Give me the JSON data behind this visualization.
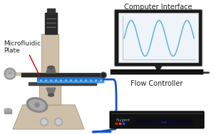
{
  "bg_color": "#ffffff",
  "computer_interface_label": "Computer Interface",
  "flow_controller_label": "Flow Controller",
  "microfluidic_label_line1": "Microfluidic",
  "microfluidic_label_line2": "Plate",
  "microscope_body_color": "#cec0a8",
  "microscope_dark": "#2a2a2a",
  "microscope_mid": "#555555",
  "microscope_light": "#e8dcc8",
  "screen_plot_bg": "#eef4fa",
  "screen_border": "#cccccc",
  "sine_color": "#55aadd",
  "cable_color": "#1155cc",
  "plate_blue": "#2277cc",
  "plate_light": "#88bbee",
  "keyboard_color": "#111111",
  "flow_box_color": "#111111",
  "red_arrow_color": "#cc0000",
  "monitor_outer": "#111111",
  "monitor_bezel": "#222222",
  "monitor_stand_color": "#111111",
  "text_color": "#222222",
  "label_fontsize": 6.5,
  "knob_color": "#888888",
  "knob_light": "#aaaaaa"
}
